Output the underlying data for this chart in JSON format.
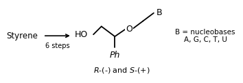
{
  "bg_color": "#ffffff",
  "text_styrene": "Styrene",
  "text_steps": "6 steps",
  "text_HO": "HO",
  "text_O": "O",
  "text_Ph": "Ph",
  "text_B": "B",
  "text_B_label": "B = nucleobases",
  "text_B_bases": "A, G, C, T, U",
  "text_stereo_r": "R",
  "text_stereo_s": "S",
  "text_stereo_rest": "-(-) and ",
  "text_stereo_end": "-(+)",
  "line_color": "#000000",
  "figsize": [
    3.54,
    1.21
  ],
  "dpi": 100
}
